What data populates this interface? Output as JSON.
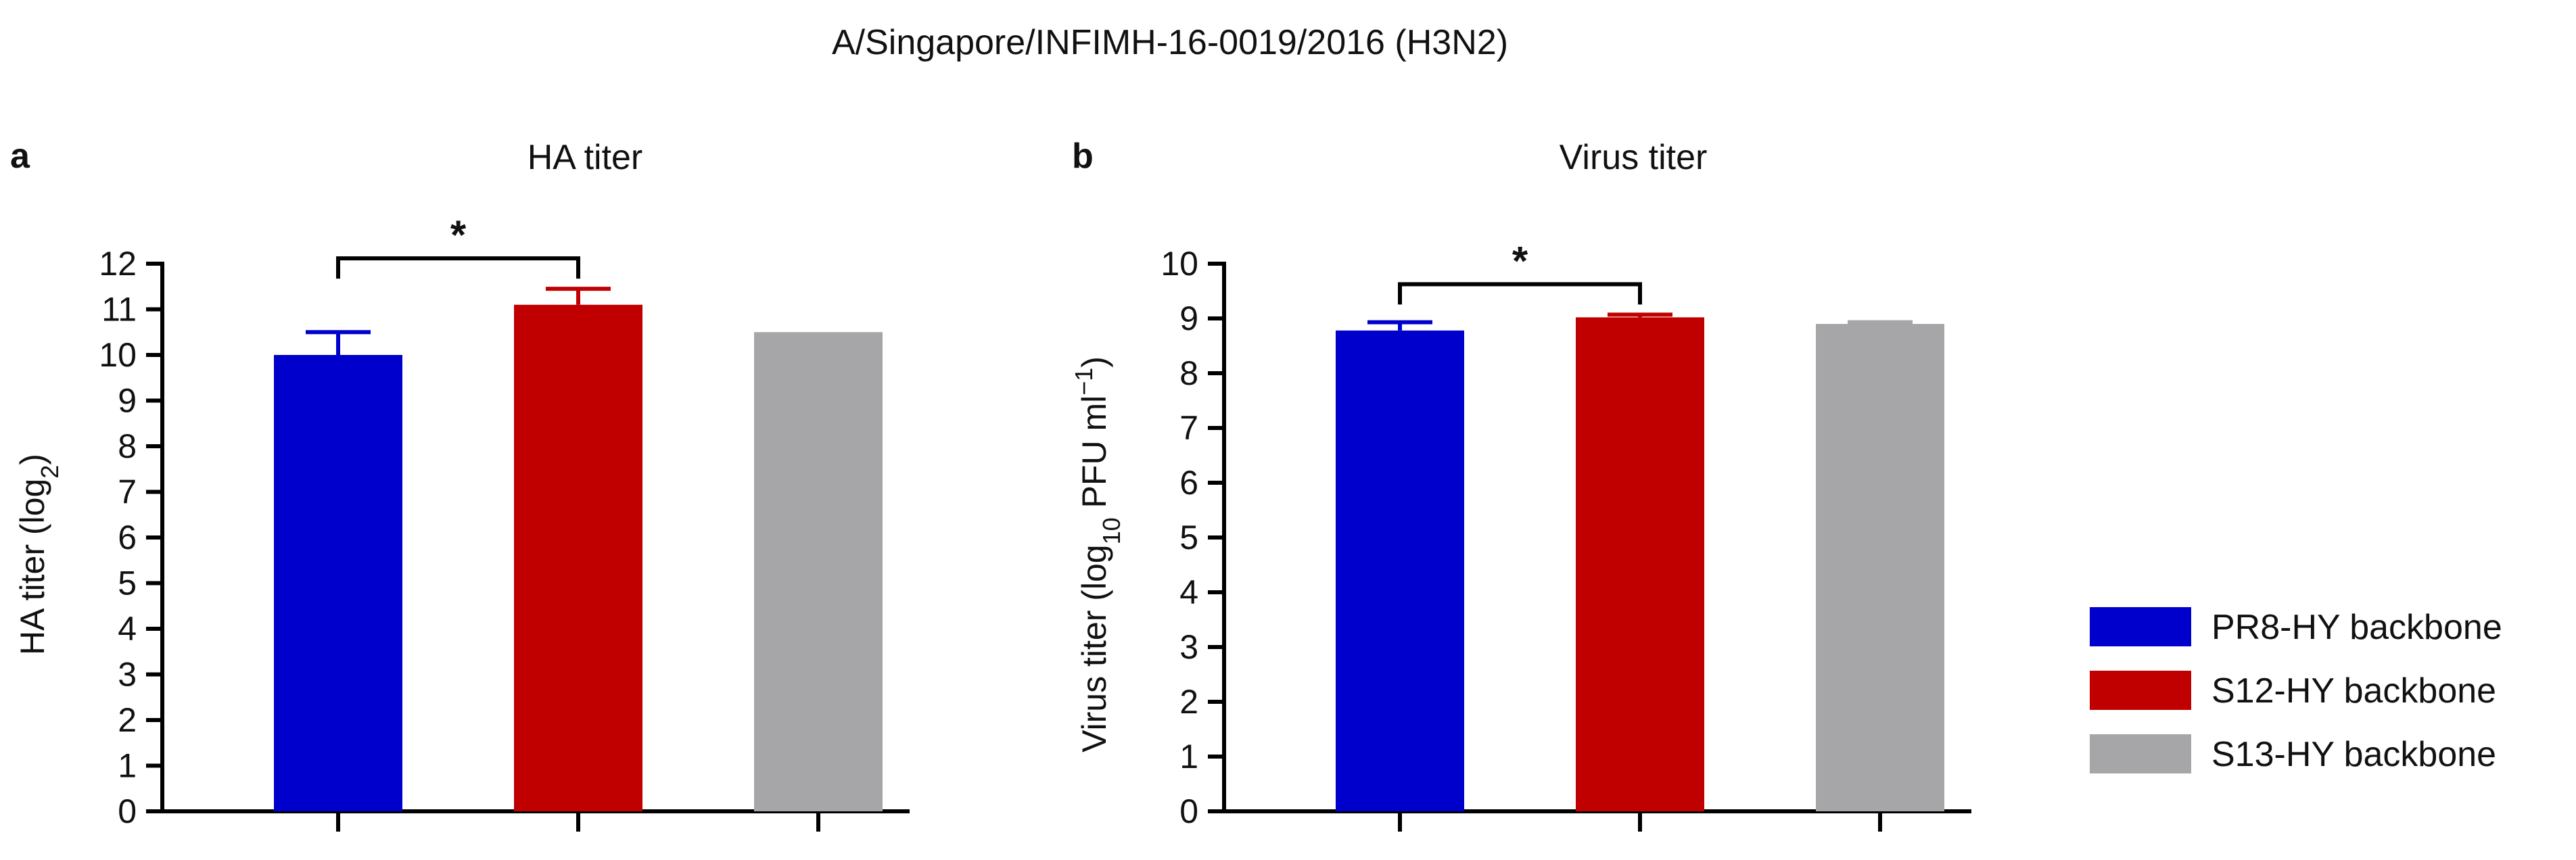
{
  "figure": {
    "title": "A/Singapore/INFIMH-16-0019/2016 (H3N2)"
  },
  "legend": {
    "placement": "right",
    "items": [
      {
        "label": "PR8-HY backbone",
        "color": "#0000cc"
      },
      {
        "label": "S12-HY backbone",
        "color": "#c00000"
      },
      {
        "label": "S13-HY backbone",
        "color": "#a6a6a8"
      }
    ]
  },
  "chart_data": [
    {
      "panel": "a",
      "type": "bar",
      "title": "HA titer",
      "ylabel": "HA titer (log",
      "ylabel_sub": "2",
      "ylabel_end": ")",
      "ylim": [
        0,
        12
      ],
      "yticks": [
        0,
        1,
        2,
        3,
        4,
        5,
        6,
        7,
        8,
        9,
        10,
        11,
        12
      ],
      "categories": [
        "PR8-HY backbone",
        "S12-HY backbone",
        "S13-HY backbone"
      ],
      "values": [
        10.0,
        11.1,
        10.5
      ],
      "errors": [
        0.5,
        0.35,
        0.0
      ],
      "colors": [
        "#0000cc",
        "#c00000",
        "#a6a6a8"
      ],
      "significance": [
        {
          "from": 0,
          "to": 1,
          "label": "*"
        }
      ],
      "grid": false
    },
    {
      "panel": "b",
      "type": "bar",
      "title": "Virus titer",
      "ylabel": "Virus titer (log",
      "ylabel_sub": "10",
      "ylabel_mid": " PFU ml",
      "ylabel_sup": "−1",
      "ylabel_end": ")",
      "ylim": [
        0,
        10
      ],
      "yticks": [
        0,
        1,
        2,
        3,
        4,
        5,
        6,
        7,
        8,
        9,
        10
      ],
      "categories": [
        "PR8-HY backbone",
        "S12-HY backbone",
        "S13-HY backbone"
      ],
      "values": [
        8.78,
        9.02,
        8.9
      ],
      "errors": [
        0.15,
        0.05,
        0.03
      ],
      "colors": [
        "#0000cc",
        "#c00000",
        "#a6a6a8"
      ],
      "significance": [
        {
          "from": 0,
          "to": 1,
          "label": "*"
        }
      ],
      "grid": false
    }
  ]
}
